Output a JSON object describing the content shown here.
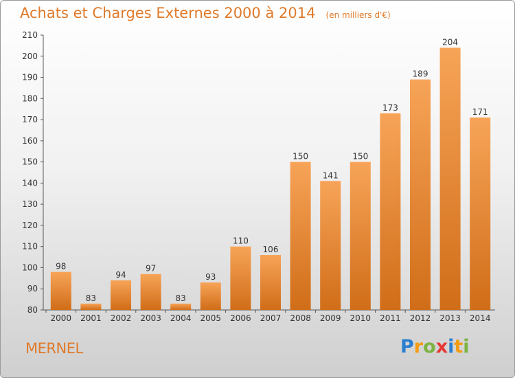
{
  "title": "Achats et Charges Externes 2000 à 2014",
  "subtitle": "(en milliers d'€)",
  "town": "MERNEL",
  "logo": {
    "letters": [
      "P",
      "r",
      "o",
      "x",
      "i",
      "t",
      "i"
    ],
    "colors": [
      "#2b7fd0",
      "#f39c12",
      "#7cb342",
      "#e53935",
      "#2b7fd0",
      "#f39c12",
      "#7cb342"
    ]
  },
  "colors": {
    "bar": "#f0903a",
    "bar_dark": "#d2711c",
    "accent": "#e07a2a"
  },
  "chart_data": {
    "type": "bar",
    "categories": [
      "2000",
      "2001",
      "2002",
      "2003",
      "2004",
      "2005",
      "2006",
      "2007",
      "2008",
      "2009",
      "2010",
      "2011",
      "2012",
      "2013",
      "2014"
    ],
    "values": [
      98,
      83,
      94,
      97,
      83,
      93,
      110,
      106,
      150,
      141,
      150,
      173,
      189,
      204,
      171
    ],
    "ylim": [
      80,
      210
    ],
    "yticks": [
      80,
      90,
      100,
      110,
      120,
      130,
      140,
      150,
      160,
      170,
      180,
      190,
      200,
      210
    ],
    "grid": false
  }
}
